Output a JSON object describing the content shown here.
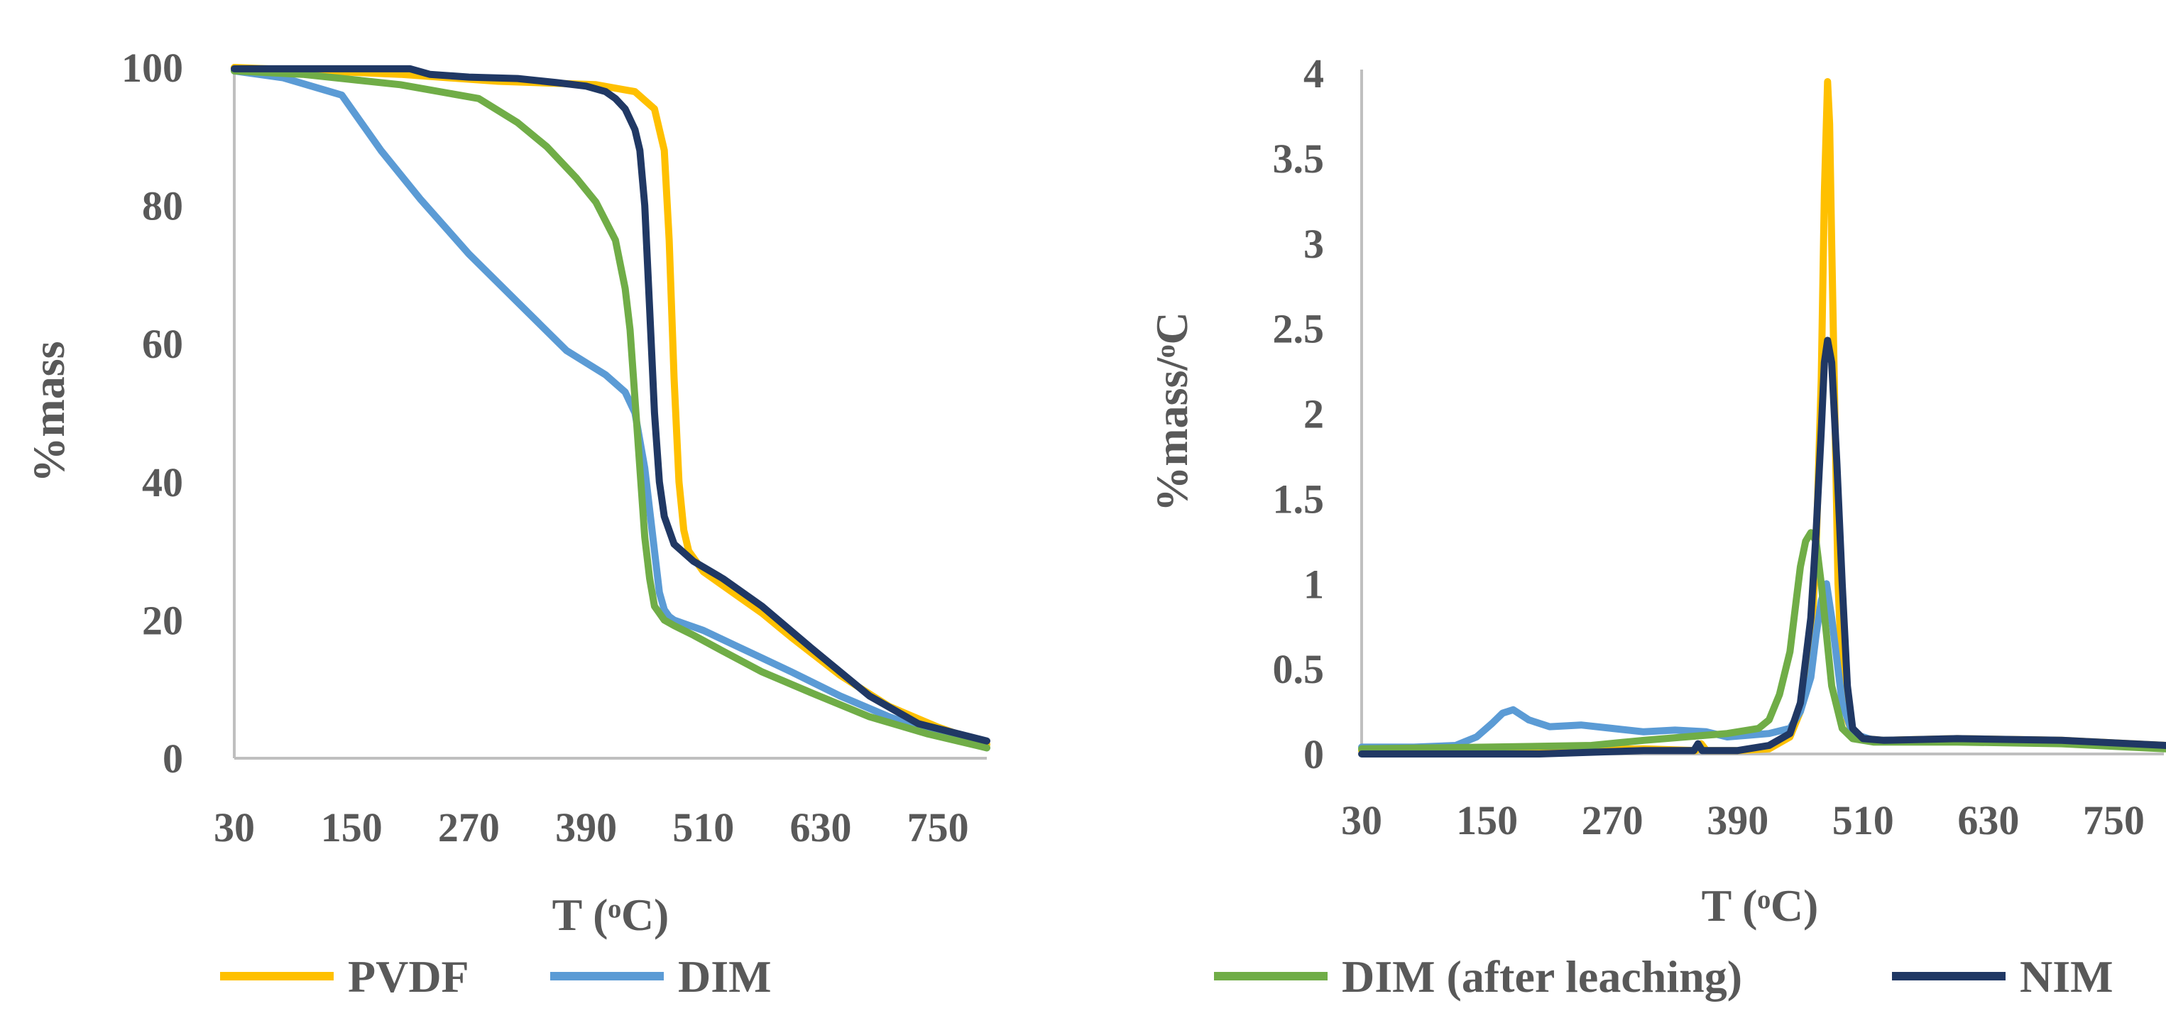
{
  "chart_data": [
    {
      "type": "line",
      "title": "",
      "xlabel": "T (ᵒC)",
      "ylabel": "%mass",
      "xlim": [
        30,
        800
      ],
      "ylim": [
        0,
        100
      ],
      "xticks": [
        "30",
        "150",
        "270",
        "390",
        "510",
        "630",
        "750"
      ],
      "yticks": [
        "0",
        "20",
        "40",
        "60",
        "80",
        "100"
      ],
      "series": [
        {
          "name": "PVDF",
          "color": "#FFC000",
          "x": [
            30,
            100,
            200,
            300,
            400,
            440,
            460,
            470,
            475,
            480,
            485,
            490,
            495,
            510,
            540,
            570,
            600,
            650,
            700,
            750,
            800
          ],
          "y": [
            100,
            99.6,
            99,
            98,
            97.5,
            96.5,
            94,
            88,
            75,
            55,
            40,
            33,
            30,
            27,
            24,
            21,
            17.5,
            12,
            7.5,
            4.5,
            2
          ]
        },
        {
          "name": "DIM",
          "color": "#5B9BD5",
          "x": [
            30,
            80,
            140,
            180,
            220,
            270,
            320,
            370,
            410,
            430,
            440,
            450,
            460,
            465,
            470,
            475,
            480,
            490,
            510,
            540,
            570,
            600,
            650,
            700,
            750,
            800
          ],
          "y": [
            99.5,
            98.5,
            96,
            88,
            81,
            73,
            66,
            59,
            55.5,
            53,
            50,
            42,
            30,
            24,
            21.5,
            20.5,
            20,
            19.5,
            18.5,
            16.5,
            14.5,
            12.5,
            9,
            6,
            3.5,
            1.5
          ]
        },
        {
          "name": "DIM (after leaching)",
          "color": "#70AD47",
          "x": [
            30,
            100,
            200,
            280,
            320,
            350,
            380,
            400,
            420,
            430,
            435,
            440,
            445,
            450,
            455,
            460,
            470,
            480,
            500,
            530,
            570,
            620,
            680,
            740,
            800
          ],
          "y": [
            99.5,
            99,
            97.5,
            95.5,
            92,
            88.5,
            84,
            80.5,
            75,
            68,
            62,
            52,
            42,
            32,
            26,
            22,
            20,
            19.2,
            17.8,
            15.5,
            12.5,
            9.5,
            6,
            3.5,
            1.5
          ]
        },
        {
          "name": "NIM",
          "color": "#203864",
          "x": [
            30,
            100,
            210,
            230,
            270,
            320,
            360,
            390,
            410,
            420,
            430,
            440,
            445,
            450,
            455,
            460,
            465,
            470,
            480,
            500,
            530,
            570,
            620,
            680,
            730,
            800
          ],
          "y": [
            99.8,
            99.8,
            99.8,
            99,
            98.6,
            98.4,
            97.8,
            97.3,
            96.5,
            95.5,
            94,
            91,
            88,
            80,
            65,
            50,
            40,
            35,
            31,
            28.5,
            26,
            22,
            16,
            9,
            5,
            2.5
          ]
        }
      ]
    },
    {
      "type": "line",
      "title": "",
      "xlabel": "T (ᵒC)",
      "ylabel": "%mass/ᵒC",
      "xlim": [
        30,
        800
      ],
      "ylim": [
        0,
        4
      ],
      "xticks": [
        "30",
        "150",
        "270",
        "390",
        "510",
        "630",
        "750"
      ],
      "yticks": [
        "0",
        "0.5",
        "1",
        "1.5",
        "2",
        "2.5",
        "3",
        "3.5",
        "4"
      ],
      "series": [
        {
          "name": "PVDF",
          "color": "#FFC000",
          "x": [
            30,
            200,
            300,
            350,
            355,
            360,
            390,
            420,
            440,
            450,
            460,
            465,
            470,
            473,
            476,
            478,
            480,
            483,
            486,
            490,
            495,
            500,
            510,
            530,
            600,
            700,
            800
          ],
          "y": [
            0.02,
            0.02,
            0.03,
            0.02,
            0.06,
            0.02,
            0.02,
            0.03,
            0.1,
            0.25,
            0.6,
            1.2,
            2.2,
            3.3,
            3.95,
            3.7,
            3.0,
            2.0,
            1.0,
            0.45,
            0.2,
            0.12,
            0.09,
            0.08,
            0.09,
            0.08,
            0.05
          ]
        },
        {
          "name": "DIM",
          "color": "#5B9BD5",
          "x": [
            30,
            80,
            120,
            140,
            155,
            165,
            175,
            190,
            210,
            240,
            270,
            300,
            330,
            360,
            380,
            400,
            420,
            440,
            450,
            460,
            465,
            470,
            475,
            480,
            490,
            500,
            520,
            600,
            700,
            800
          ],
          "y": [
            0.04,
            0.04,
            0.05,
            0.1,
            0.18,
            0.24,
            0.26,
            0.2,
            0.16,
            0.17,
            0.15,
            0.13,
            0.14,
            0.13,
            0.1,
            0.11,
            0.12,
            0.15,
            0.25,
            0.45,
            0.7,
            0.9,
            1.0,
            0.8,
            0.3,
            0.12,
            0.08,
            0.08,
            0.07,
            0.04
          ]
        },
        {
          "name": "DIM (after leaching)",
          "color": "#70AD47",
          "x": [
            30,
            150,
            250,
            300,
            340,
            380,
            410,
            420,
            430,
            440,
            445,
            450,
            455,
            460,
            465,
            470,
            475,
            480,
            490,
            500,
            520,
            600,
            700,
            800
          ],
          "y": [
            0.03,
            0.04,
            0.05,
            0.08,
            0.1,
            0.12,
            0.15,
            0.2,
            0.35,
            0.6,
            0.85,
            1.1,
            1.25,
            1.3,
            1.25,
            1.0,
            0.7,
            0.4,
            0.15,
            0.09,
            0.07,
            0.07,
            0.06,
            0.03
          ]
        },
        {
          "name": "NIM",
          "color": "#203864",
          "x": [
            30,
            200,
            300,
            348,
            352,
            356,
            390,
            420,
            440,
            450,
            460,
            465,
            470,
            473,
            476,
            480,
            485,
            490,
            495,
            500,
            510,
            530,
            600,
            700,
            800
          ],
          "y": [
            0.0,
            0.0,
            0.02,
            0.02,
            0.06,
            0.02,
            0.02,
            0.05,
            0.12,
            0.3,
            0.8,
            1.3,
            1.9,
            2.3,
            2.43,
            2.3,
            1.7,
            1.0,
            0.4,
            0.15,
            0.09,
            0.08,
            0.09,
            0.08,
            0.05
          ]
        }
      ]
    }
  ],
  "legend": [
    {
      "name": "PVDF",
      "color": "#FFC000"
    },
    {
      "name": "DIM",
      "color": "#5B9BD5"
    },
    {
      "name": "DIM (after leaching)",
      "color": "#70AD47"
    },
    {
      "name": "NIM",
      "color": "#203864"
    }
  ]
}
